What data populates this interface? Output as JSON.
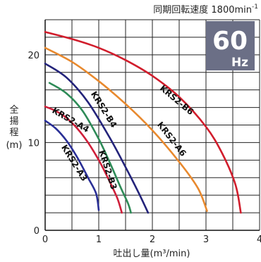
{
  "header": {
    "speed_label": "同期回転速度 1800min",
    "speed_superscript": "-1"
  },
  "badge": {
    "value": "60",
    "unit": "Hz",
    "bg_color": "#6b6f86"
  },
  "ylabel_lines": [
    "全",
    "揚",
    "程",
    "(m)"
  ],
  "chart_data": {
    "type": "line",
    "title": "",
    "xlabel": "吐出し量(m³/min)",
    "ylabel": "全揚程(m)",
    "xlim": [
      0,
      4
    ],
    "ylim": [
      0,
      24
    ],
    "x_ticks": [
      0,
      1,
      2,
      3,
      4
    ],
    "y_ticks": [
      0,
      10,
      20
    ],
    "grid": true,
    "series": [
      {
        "name": "KRS2-A3",
        "color": "#2a2f96",
        "x": [
          0,
          0.2,
          0.4,
          0.6,
          0.8,
          0.95,
          1.0
        ],
        "y": [
          12.5,
          11.6,
          10.2,
          8.3,
          6.0,
          4.2,
          2.3
        ]
      },
      {
        "name": "KRS2-A4",
        "color": "#cf1f3a",
        "x": [
          0,
          0.2,
          0.4,
          0.6,
          0.8,
          1.0,
          1.2,
          1.35,
          1.43
        ],
        "y": [
          14.1,
          13.6,
          12.8,
          11.6,
          10.0,
          8.0,
          5.6,
          3.6,
          2.0
        ]
      },
      {
        "name": "KRS2-B3",
        "color": "#2e8b57",
        "x": [
          0.08,
          0.4,
          0.7,
          1.0,
          1.2,
          1.4,
          1.55,
          1.6
        ],
        "y": [
          16.8,
          15.6,
          13.6,
          10.4,
          7.8,
          5.0,
          3.0,
          2.0
        ]
      },
      {
        "name": "KRS2-B4",
        "color": "#23237a",
        "x": [
          0,
          0.4,
          0.8,
          1.2,
          1.5,
          1.75,
          1.92
        ],
        "y": [
          19.0,
          17.4,
          14.6,
          10.6,
          7.2,
          4.2,
          2.0
        ]
      },
      {
        "name": "KRS2-A6",
        "color": "#e8892e",
        "x": [
          0,
          0.5,
          1.0,
          1.5,
          2.0,
          2.5,
          2.85,
          3.02
        ],
        "y": [
          20.8,
          19.2,
          17.0,
          14.4,
          11.4,
          7.8,
          4.8,
          2.2
        ]
      },
      {
        "name": "KRS2-B6",
        "color": "#d11d2c",
        "x": [
          0,
          0.5,
          1.0,
          1.5,
          2.0,
          2.5,
          3.0,
          3.3,
          3.55,
          3.65
        ],
        "y": [
          22.6,
          21.8,
          20.8,
          19.4,
          17.6,
          15.2,
          11.8,
          8.8,
          5.2,
          2.0
        ]
      }
    ],
    "curve_labels": [
      {
        "text": "KRS2-A3",
        "x": 0.5,
        "y": 7.5,
        "angle": 58
      },
      {
        "text": "KRS2-A4",
        "x": 0.45,
        "y": 12.3,
        "angle": 30
      },
      {
        "text": "KRS2-B3",
        "x": 1.12,
        "y": 6.8,
        "angle": 72
      },
      {
        "text": "KRS2-B4",
        "x": 1.05,
        "y": 13.6,
        "angle": 58
      },
      {
        "text": "KRS2-A6",
        "x": 2.32,
        "y": 10.2,
        "angle": 52
      },
      {
        "text": "KRS2-B6",
        "x": 2.42,
        "y": 14.6,
        "angle": 40
      }
    ]
  }
}
